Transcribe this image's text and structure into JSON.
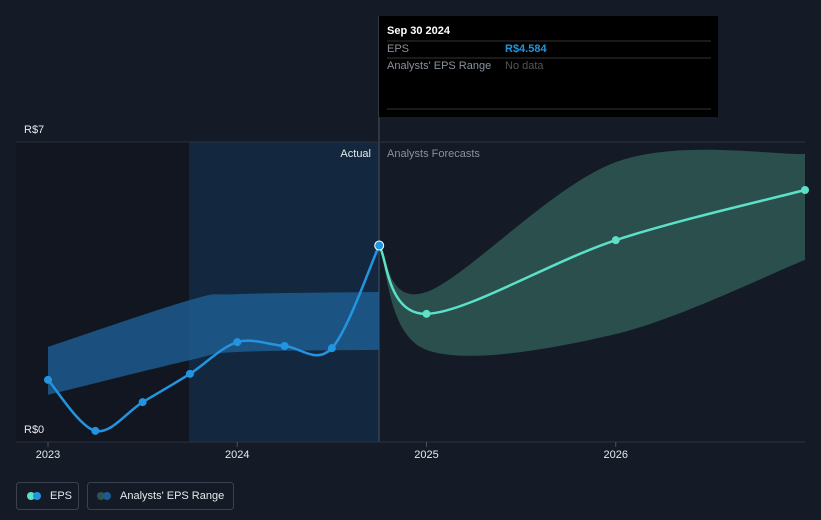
{
  "chart_data": {
    "type": "line",
    "xlim": [
      2023,
      2027
    ],
    "xticks": [
      2023,
      2024,
      2025,
      2026
    ],
    "ylim": [
      0,
      7
    ],
    "yticks": [
      {
        "value": 0,
        "label": "R$0"
      },
      {
        "value": 7,
        "label": "R$7"
      }
    ],
    "annotations": {
      "actual": "Actual",
      "forecast": "Analysts Forecasts"
    },
    "series": [
      {
        "name": "EPS",
        "color": "#2394df",
        "x": [
          2023,
          2023.25,
          2023.5,
          2023.75,
          2024,
          2024.25,
          2024.5,
          2024.75
        ],
        "values": [
          1.45,
          0.26,
          0.93,
          1.59,
          2.33,
          2.24,
          2.19,
          4.584
        ]
      }
    ],
    "forecast": {
      "color": "#5ce0c8",
      "x": [
        2024.75,
        2025,
        2026,
        2027
      ],
      "values": [
        4.584,
        2.99,
        4.71,
        5.88
      ]
    },
    "range": {
      "name": "Analysts' EPS Range",
      "actual": {
        "color": "#1d5a8f",
        "x": [
          2023,
          2023.75,
          2024,
          2024.75
        ],
        "high": [
          2.22,
          3.31,
          3.45,
          3.5
        ],
        "low": [
          1.1,
          1.91,
          2.1,
          2.15
        ]
      },
      "forecast": {
        "color": "#2c5552",
        "x": [
          2024.75,
          2025,
          2026,
          2027
        ],
        "high": [
          4.584,
          3.5,
          6.53,
          6.72
        ],
        "low": [
          4.584,
          2.15,
          2.52,
          4.25
        ]
      }
    },
    "tooltip": {
      "date": "Sep 30 2024",
      "rows": [
        {
          "label": "EPS",
          "value": "R$4.584"
        },
        {
          "label": "Analysts' EPS Range",
          "value": "No data"
        }
      ]
    }
  }
}
